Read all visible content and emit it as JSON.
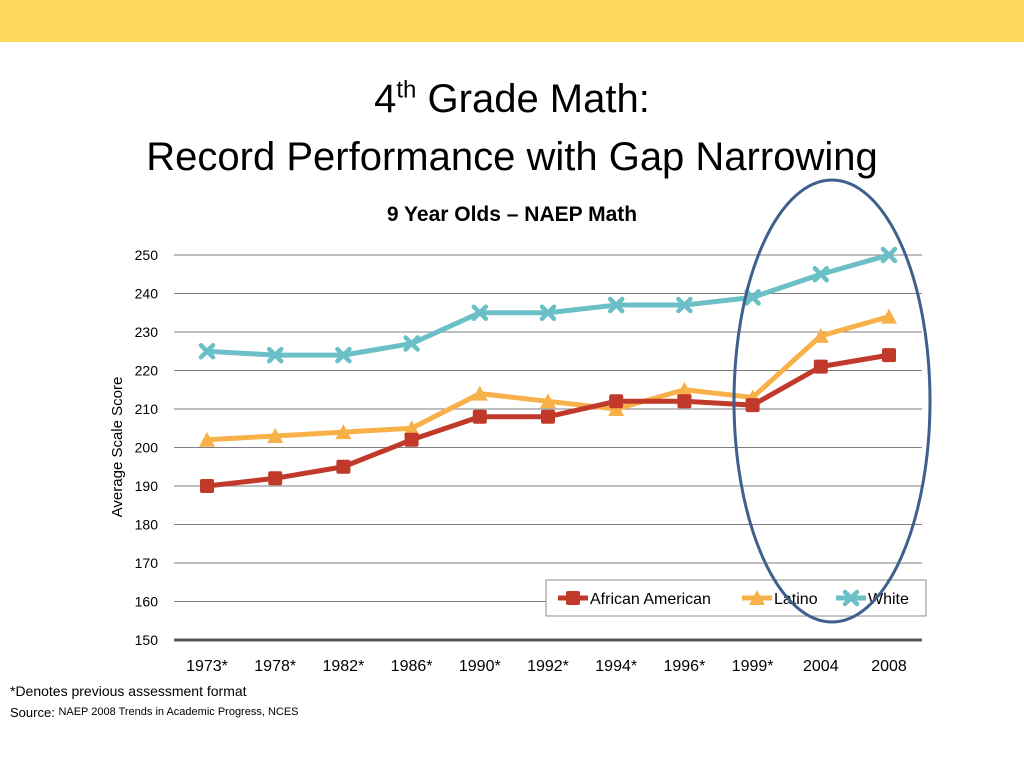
{
  "colors": {
    "banner": "#fdd65a",
    "grid": "#7f7f7f",
    "axis": "#595959",
    "highlight_ellipse": "#3f5f8e"
  },
  "slide": {
    "title_base": "4",
    "title_sup": "th",
    "title_rest": " Grade Math:",
    "title_line2": "Record Performance with Gap Narrowing",
    "footnote": "*Denotes previous assessment format",
    "source_label": "Source:",
    "source_text": "NAEP 2008 Trends in Academic Progress, NCES"
  },
  "chart_data": {
    "type": "line",
    "title": "9 Year Olds – NAEP Math",
    "xlabel": "",
    "ylabel": "Average Scale Score",
    "categories": [
      "1973*",
      "1978*",
      "1982*",
      "1986*",
      "1990*",
      "1992*",
      "1994*",
      "1996*",
      "1999*",
      "2004",
      "2008"
    ],
    "ylim": [
      150,
      250
    ],
    "yticks": [
      150,
      160,
      170,
      180,
      190,
      200,
      210,
      220,
      230,
      240,
      250
    ],
    "grid": true,
    "legend_position": "bottom-right",
    "highlight": {
      "categories": [
        "1999*",
        "2004",
        "2008"
      ],
      "shape": "ellipse"
    },
    "series": [
      {
        "name": "African American",
        "color": "#c0392b",
        "marker": "square",
        "values": [
          190,
          192,
          195,
          202,
          208,
          208,
          212,
          212,
          211,
          221,
          224
        ]
      },
      {
        "name": "Latino",
        "color": "#f8b148",
        "marker": "triangle",
        "values": [
          202,
          203,
          204,
          205,
          214,
          212,
          210,
          215,
          213,
          229,
          234
        ]
      },
      {
        "name": "White",
        "color": "#6bbfc7",
        "marker": "x",
        "values": [
          225,
          224,
          224,
          227,
          235,
          235,
          237,
          237,
          239,
          245,
          250
        ]
      }
    ]
  }
}
